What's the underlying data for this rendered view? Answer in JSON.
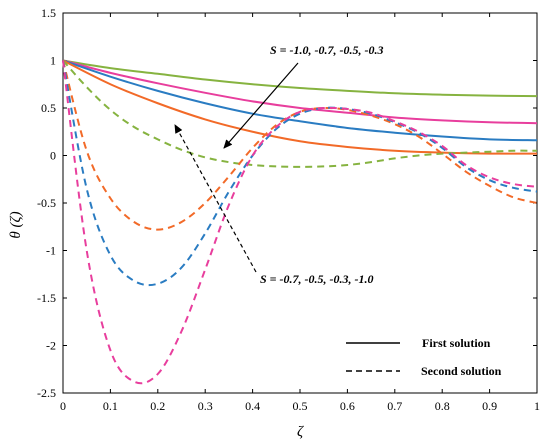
{
  "chart_data": {
    "type": "line",
    "xlabel": "ζ",
    "ylabel": "θ (ζ)",
    "xlim": [
      0,
      1
    ],
    "ylim": [
      -2.5,
      1.5
    ],
    "xticks": [
      0,
      0.1,
      0.2,
      0.3,
      0.4,
      0.5,
      0.6,
      0.7,
      0.8,
      0.9,
      1
    ],
    "yticks": [
      -2.5,
      -2,
      -1.5,
      -1,
      -0.5,
      0,
      0.5,
      1,
      1.5
    ],
    "xtick_labels": [
      "0",
      "0.1",
      "0.2",
      "0.3",
      "0.4",
      "0.5",
      "0.6",
      "0.7",
      "0.8",
      "0.9",
      "1"
    ],
    "ytick_labels": [
      "-2.5",
      "-2",
      "-1.5",
      "-1",
      "-0.5",
      "0",
      "0.5",
      "1",
      "1.5"
    ],
    "grid": false,
    "legend_position": "bottom-right",
    "legend": [
      {
        "label": "First solution",
        "style": "solid"
      },
      {
        "label": "Second solution",
        "style": "dashed"
      }
    ],
    "annotations": [
      {
        "text": "S = -1.0, -0.7, -0.5, -0.3",
        "applies_to": "first"
      },
      {
        "text": "S = -0.7, -0.5, -0.3, -1.0",
        "applies_to": "second"
      }
    ],
    "series": [
      {
        "solution": "first",
        "color": "#86b340",
        "style": "solid",
        "x": [
          0,
          0.1,
          0.2,
          0.3,
          0.4,
          0.5,
          0.6,
          0.7,
          0.8,
          0.9,
          1.0
        ],
        "y": [
          1.0,
          0.92,
          0.86,
          0.8,
          0.75,
          0.71,
          0.68,
          0.655,
          0.64,
          0.63,
          0.625
        ]
      },
      {
        "solution": "first",
        "color": "#e83e9d",
        "style": "solid",
        "x": [
          0,
          0.1,
          0.2,
          0.3,
          0.4,
          0.5,
          0.6,
          0.7,
          0.8,
          0.9,
          1.0
        ],
        "y": [
          1.0,
          0.87,
          0.76,
          0.66,
          0.57,
          0.5,
          0.45,
          0.4,
          0.37,
          0.35,
          0.34
        ]
      },
      {
        "solution": "first",
        "color": "#2a7cc2",
        "style": "solid",
        "x": [
          0,
          0.1,
          0.2,
          0.3,
          0.4,
          0.5,
          0.6,
          0.7,
          0.8,
          0.9,
          1.0
        ],
        "y": [
          1.0,
          0.83,
          0.68,
          0.55,
          0.44,
          0.36,
          0.29,
          0.24,
          0.2,
          0.17,
          0.16
        ]
      },
      {
        "solution": "first",
        "color": "#f26a28",
        "style": "solid",
        "x": [
          0,
          0.1,
          0.2,
          0.3,
          0.4,
          0.5,
          0.6,
          0.7,
          0.8,
          0.9,
          1.0
        ],
        "y": [
          1.0,
          0.75,
          0.55,
          0.38,
          0.25,
          0.15,
          0.09,
          0.05,
          0.03,
          0.02,
          0.02
        ]
      },
      {
        "solution": "second",
        "color": "#86b340",
        "style": "dashed",
        "x": [
          0,
          0.05,
          0.1,
          0.15,
          0.2,
          0.25,
          0.3,
          0.35,
          0.4,
          0.45,
          0.5,
          0.55,
          0.6,
          0.65,
          0.7,
          0.75,
          0.8,
          0.85,
          0.9,
          0.95,
          1.0
        ],
        "y": [
          1.0,
          0.72,
          0.48,
          0.3,
          0.17,
          0.06,
          -0.02,
          -0.07,
          -0.1,
          -0.115,
          -0.12,
          -0.115,
          -0.1,
          -0.07,
          -0.03,
          0.0,
          0.02,
          0.03,
          0.04,
          0.05,
          0.05
        ]
      },
      {
        "solution": "second",
        "color": "#f26a28",
        "style": "dashed",
        "x": [
          0,
          0.05,
          0.1,
          0.15,
          0.2,
          0.25,
          0.3,
          0.35,
          0.4,
          0.45,
          0.5,
          0.55,
          0.6,
          0.65,
          0.7,
          0.75,
          0.8,
          0.85,
          0.9,
          0.95,
          1.0
        ],
        "y": [
          1.0,
          0.05,
          -0.45,
          -0.7,
          -0.78,
          -0.7,
          -0.5,
          -0.22,
          0.08,
          0.32,
          0.46,
          0.5,
          0.48,
          0.42,
          0.33,
          0.2,
          0.02,
          -0.17,
          -0.32,
          -0.44,
          -0.5
        ]
      },
      {
        "solution": "second",
        "color": "#2a7cc2",
        "style": "dashed",
        "x": [
          0,
          0.05,
          0.1,
          0.15,
          0.2,
          0.25,
          0.3,
          0.35,
          0.4,
          0.45,
          0.5,
          0.55,
          0.6,
          0.65,
          0.7,
          0.75,
          0.8,
          0.85,
          0.9,
          0.95,
          1.0
        ],
        "y": [
          1.0,
          -0.35,
          -1.05,
          -1.32,
          -1.35,
          -1.18,
          -0.82,
          -0.38,
          0.0,
          0.28,
          0.44,
          0.5,
          0.49,
          0.44,
          0.35,
          0.24,
          0.08,
          -0.12,
          -0.26,
          -0.34,
          -0.38
        ]
      },
      {
        "solution": "second",
        "color": "#e83e9d",
        "style": "dashed",
        "x": [
          0,
          0.05,
          0.1,
          0.15,
          0.2,
          0.25,
          0.3,
          0.35,
          0.4,
          0.45,
          0.5,
          0.55,
          0.6,
          0.65,
          0.7,
          0.75,
          0.8,
          0.85,
          0.9,
          0.95,
          1.0
        ],
        "y": [
          1.0,
          -1.0,
          -2.05,
          -2.38,
          -2.3,
          -1.85,
          -1.2,
          -0.52,
          0.0,
          0.3,
          0.46,
          0.5,
          0.49,
          0.45,
          0.36,
          0.25,
          0.1,
          -0.1,
          -0.23,
          -0.3,
          -0.33
        ]
      }
    ]
  }
}
